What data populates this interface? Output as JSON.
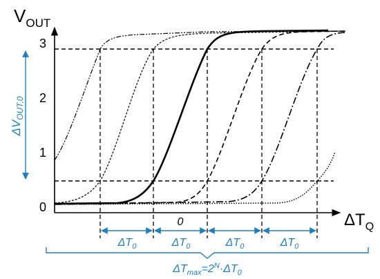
{
  "y_axis": {
    "label": "V",
    "label_sub": "OUT",
    "ticks": [
      "0",
      "1",
      "2",
      "3"
    ]
  },
  "x_axis": {
    "label": "ΔT",
    "label_sub": "Q"
  },
  "annotations": {
    "delta_vout_label": "ΔV",
    "delta_vout_sub": "OUT,0",
    "delta_t0": "ΔT",
    "delta_t0_sub": "0",
    "zero_label": "0",
    "tmax_prefix": "ΔT",
    "tmax_sub": "max",
    "tmax_eq": "=2",
    "tmax_exp": "N",
    "tmax_dot": "·ΔT",
    "tmax_sub2": "0"
  },
  "colors": {
    "annotation_blue": "#1f7fc0",
    "axis": "#000000",
    "reference_line": "#000000"
  }
}
